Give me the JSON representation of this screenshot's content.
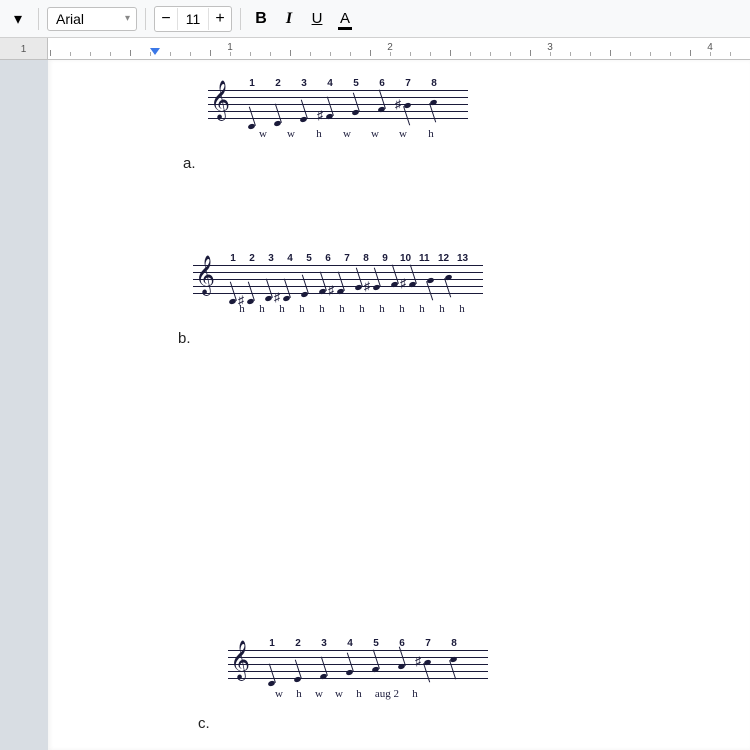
{
  "toolbar": {
    "dropdown_icon": "▾",
    "font_name": "Arial",
    "minus": "−",
    "font_size": "11",
    "plus": "+",
    "bold": "B",
    "italic": "I",
    "underline": "U",
    "text_color_letter": "A"
  },
  "ruler": {
    "left_num": "1",
    "numbers": [
      "1",
      "2",
      "3",
      "4"
    ],
    "tab_marker_color": "#3b78e7"
  },
  "labels": {
    "a": "a.",
    "b": "b.",
    "c": "c."
  },
  "staff_a": {
    "numbers": [
      "1",
      "2",
      "3",
      "4",
      "5",
      "6",
      "7",
      "8"
    ],
    "intervals": [
      "w",
      "w",
      "h",
      "w",
      "w",
      "w",
      "h"
    ],
    "note_gap": 26,
    "note_start": 40
  },
  "staff_b": {
    "numbers": [
      "1",
      "2",
      "3",
      "4",
      "5",
      "6",
      "7",
      "8",
      "9",
      "10",
      "11",
      "12",
      "13"
    ],
    "intervals": [
      "h",
      "h",
      "h",
      "h",
      "h",
      "h",
      "h",
      "h",
      "h",
      "h",
      "h",
      "h"
    ],
    "note_gap": 18,
    "note_start": 36
  },
  "staff_c": {
    "numbers": [
      "1",
      "2",
      "3",
      "4",
      "5",
      "6",
      "7",
      "8"
    ],
    "intervals": [
      "w",
      "h",
      "w",
      "w",
      "h",
      "aug 2",
      "h"
    ],
    "note_gap": 26,
    "note_start": 40
  },
  "colors": {
    "toolbar_bg": "#f8f9fa",
    "page_bg": "#ffffff",
    "body_bg": "#d8dde3",
    "staff_color": "#1a1a3a"
  }
}
